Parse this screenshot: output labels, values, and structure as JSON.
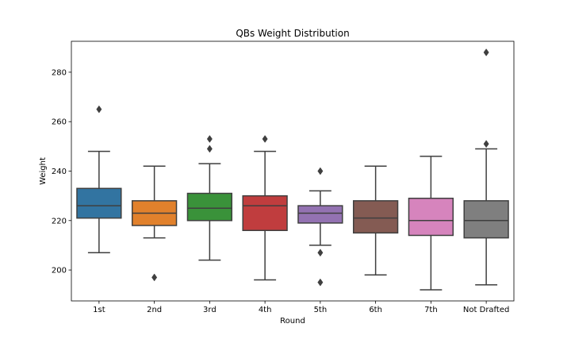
{
  "chart_data": {
    "type": "box",
    "title": "QBs Weight Distribution",
    "xlabel": "Round",
    "ylabel": "Weight",
    "ylim": [
      187.5,
      292.5
    ],
    "yticks": [
      200,
      220,
      240,
      260,
      280
    ],
    "grid": false,
    "categories": [
      "1st",
      "2nd",
      "3rd",
      "4th",
      "5th",
      "6th",
      "7th",
      "Not Drafted"
    ],
    "colors": [
      "#3274a1",
      "#e1812c",
      "#3a923a",
      "#c03d3e",
      "#9372b2",
      "#845b53",
      "#d684bd",
      "#7f7f7f"
    ],
    "boxes": [
      {
        "category": "1st",
        "whisker_low": 207,
        "q1": 221,
        "median": 226,
        "q3": 233,
        "whisker_high": 248,
        "outliers": [
          265
        ]
      },
      {
        "category": "2nd",
        "whisker_low": 213,
        "q1": 218,
        "median": 223,
        "q3": 228,
        "whisker_high": 242,
        "outliers": [
          197
        ]
      },
      {
        "category": "3rd",
        "whisker_low": 204,
        "q1": 220,
        "median": 225,
        "q3": 231,
        "whisker_high": 243,
        "outliers": [
          249,
          253
        ]
      },
      {
        "category": "4th",
        "whisker_low": 196,
        "q1": 216,
        "median": 226,
        "q3": 230,
        "whisker_high": 248,
        "outliers": [
          253
        ]
      },
      {
        "category": "5th",
        "whisker_low": 210,
        "q1": 219,
        "median": 223,
        "q3": 226,
        "whisker_high": 232,
        "outliers": [
          240,
          207,
          195
        ]
      },
      {
        "category": "6th",
        "whisker_low": 198,
        "q1": 215,
        "median": 221,
        "q3": 228,
        "whisker_high": 242,
        "outliers": []
      },
      {
        "category": "7th",
        "whisker_low": 192,
        "q1": 214,
        "median": 220,
        "q3": 229,
        "whisker_high": 246,
        "outliers": []
      },
      {
        "category": "Not Drafted",
        "whisker_low": 194,
        "q1": 213,
        "median": 220,
        "q3": 228,
        "whisker_high": 249,
        "outliers": [
          251,
          288
        ]
      }
    ]
  }
}
